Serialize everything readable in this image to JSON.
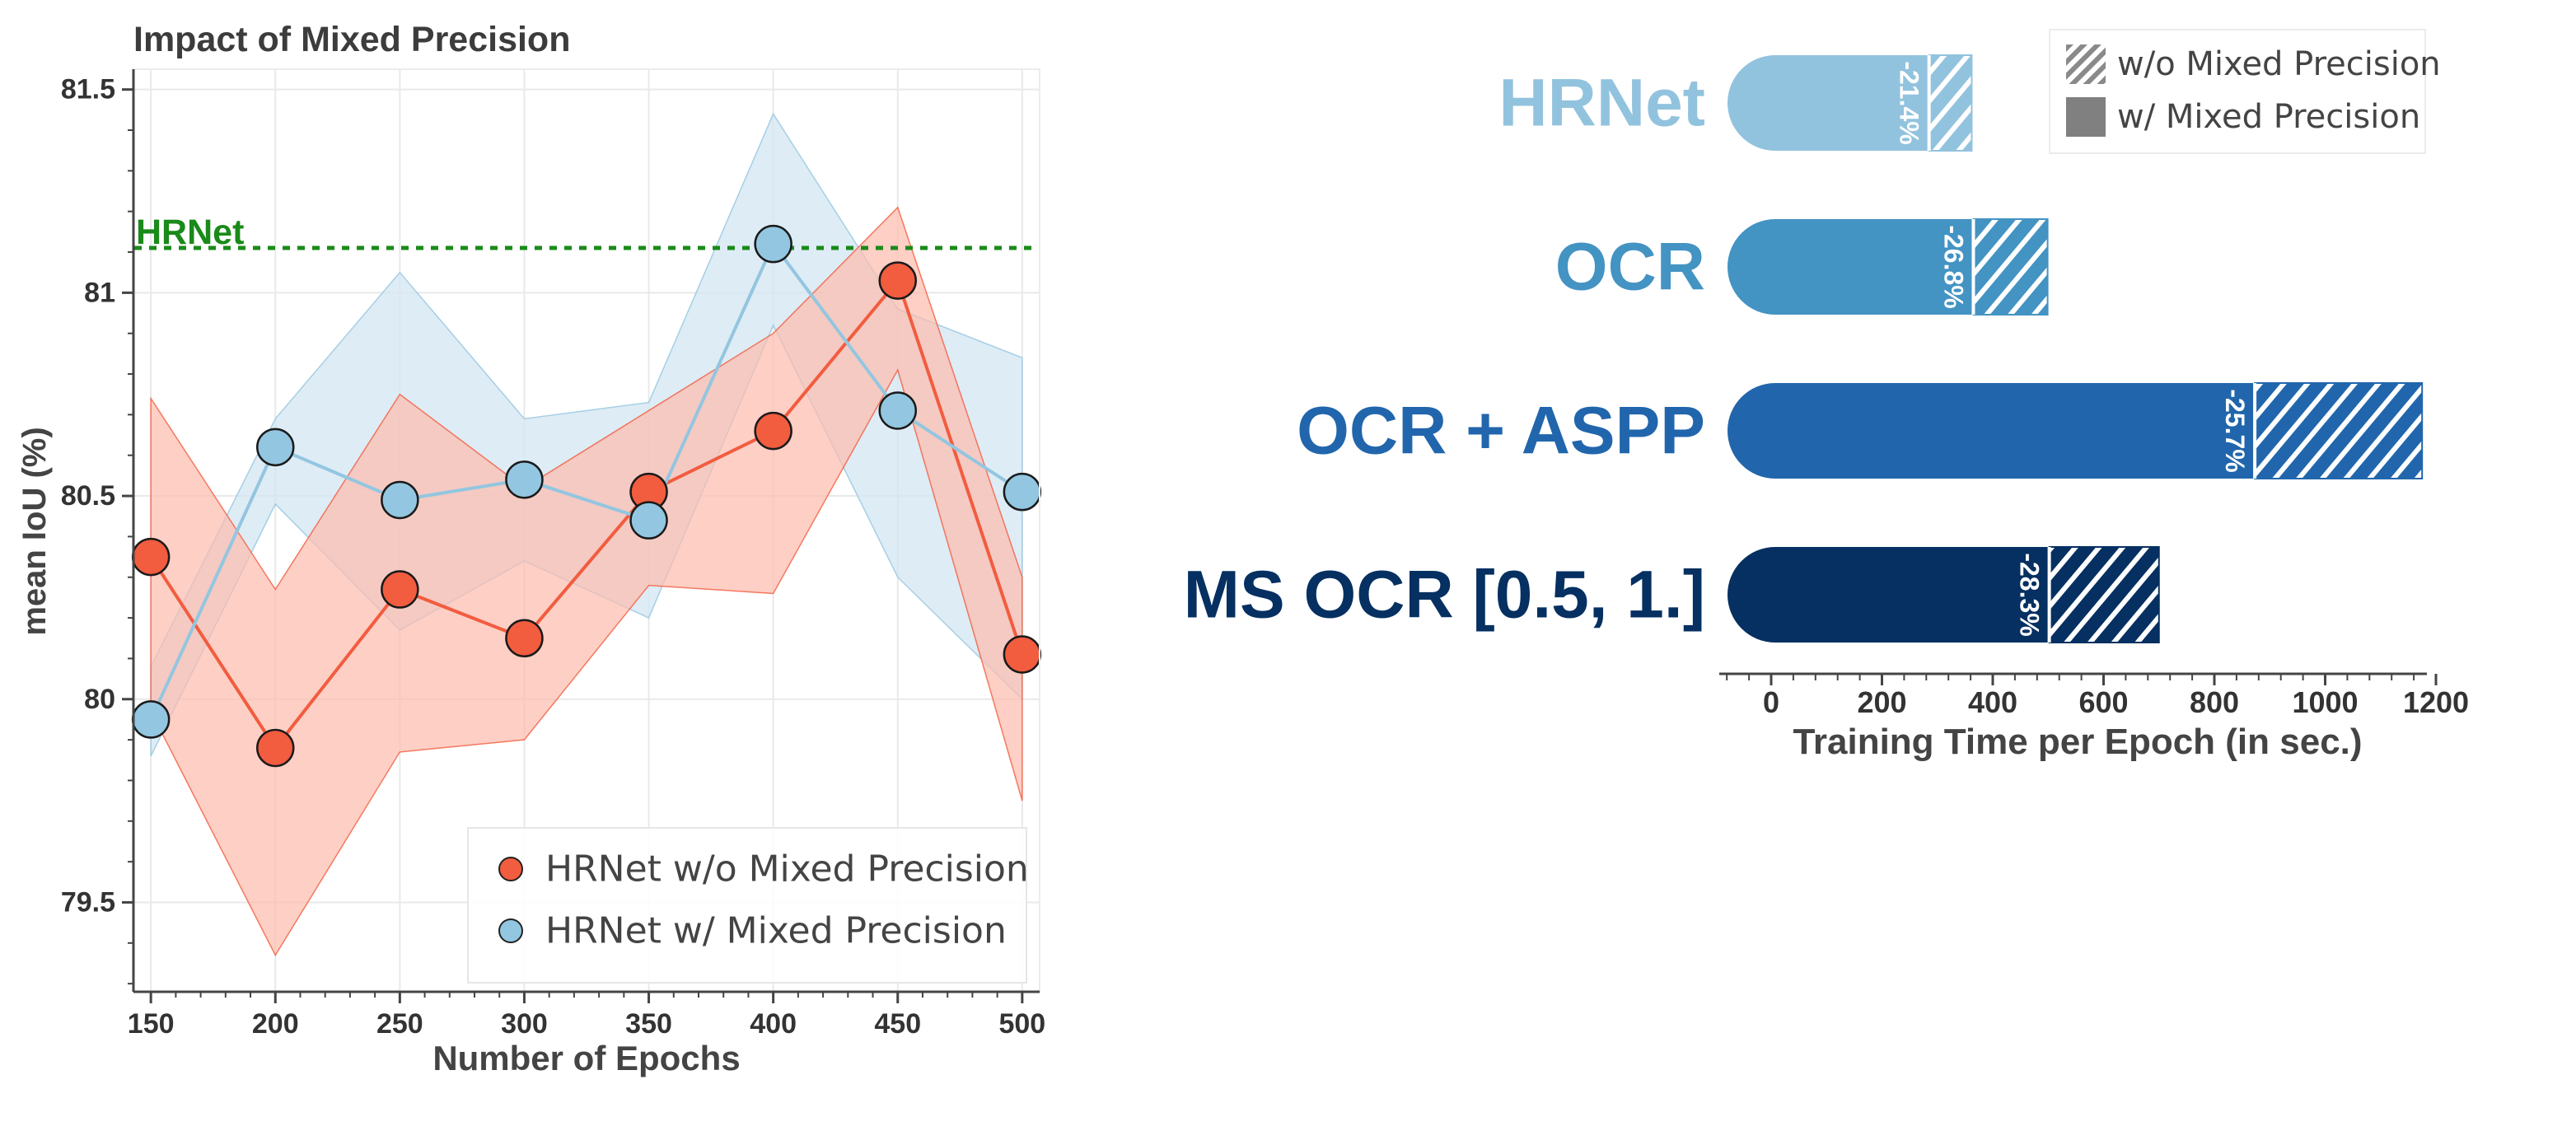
{
  "chart_data": [
    {
      "type": "line",
      "title": "Impact of Mixed Precision",
      "xlabel": "Number of Epochs",
      "ylabel": "mean IoU (%)",
      "xlim": [
        143,
        507
      ],
      "ylim": [
        79.28,
        81.55
      ],
      "x_ticks": [
        "150",
        "200",
        "250",
        "300",
        "350",
        "400",
        "450",
        "500"
      ],
      "y_ticks": [
        "79.5",
        "80",
        "80.5",
        "81",
        "81.5"
      ],
      "grid": true,
      "legend_position": "lower-right",
      "reference_line": {
        "label": "HRNet",
        "value": 81.1,
        "color": "#1a8a1a"
      },
      "x": [
        150,
        200,
        250,
        300,
        350,
        400,
        450,
        500
      ],
      "series": [
        {
          "name": "HRNet w/o Mixed Precision",
          "color": "#f25c3f",
          "band_color": "#fcbcae",
          "values": [
            80.35,
            79.88,
            80.27,
            80.15,
            80.51,
            80.66,
            81.03,
            80.11
          ],
          "upper": [
            80.74,
            80.27,
            80.75,
            80.52,
            80.71,
            80.9,
            81.21,
            80.3
          ],
          "lower": [
            79.97,
            79.37,
            79.87,
            79.9,
            80.28,
            80.26,
            80.81,
            79.75
          ]
        },
        {
          "name": "HRNet w/ Mixed Precision",
          "color": "#93c6e0",
          "band_color": "#d3e6f3",
          "values": [
            79.95,
            80.62,
            80.49,
            80.54,
            80.44,
            81.12,
            80.71,
            80.51
          ],
          "upper": [
            80.08,
            80.69,
            81.05,
            80.69,
            80.73,
            81.44,
            80.96,
            80.84
          ],
          "lower": [
            79.86,
            80.48,
            80.17,
            80.34,
            80.2,
            80.92,
            80.3,
            80.0
          ]
        }
      ]
    },
    {
      "type": "bar",
      "orientation": "horizontal",
      "xlabel": "Training Time per Epoch (in sec.)",
      "xlim": [
        -90,
        1200
      ],
      "x_ticks": [
        "0",
        "200",
        "400",
        "600",
        "800",
        "1000",
        "1200"
      ],
      "legend_position": "top-right",
      "legend": [
        "w/o Mixed Precision",
        "w/ Mixed Precision"
      ],
      "categories": [
        "HRNet",
        "OCR",
        "OCR + ASPP",
        "MS OCR [0.5, 1.]"
      ],
      "colors": [
        "#92c3de",
        "#4393c3",
        "#2166ac",
        "#053061"
      ],
      "series": [
        {
          "name": "w/ Mixed Precision",
          "values": [
            285,
            365,
            873,
            502
          ]
        },
        {
          "name": "w/o Mixed Precision",
          "values": [
            362,
            499,
            1175,
            700
          ]
        }
      ],
      "labels": [
        "-21.4%",
        "-26.8%",
        "-25.7%",
        "-28.3%"
      ]
    }
  ]
}
